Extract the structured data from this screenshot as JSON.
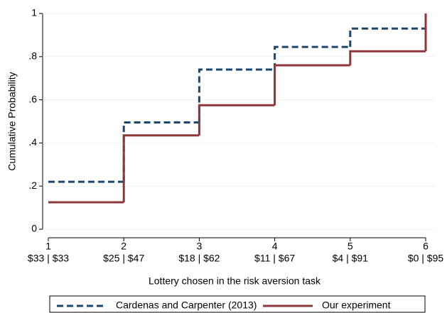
{
  "chart_data": {
    "type": "step",
    "xlabel": "Lottery chosen in the risk aversion task",
    "ylabel": "Cumulative Probability",
    "x": [
      1,
      2,
      3,
      4,
      5,
      6
    ],
    "xlim": [
      1,
      6
    ],
    "xticks": [
      1,
      2,
      3,
      4,
      5,
      6
    ],
    "xtick_sublabels": [
      "$33 | $33",
      "$25 | $47",
      "$18 | $62",
      "$11 | $67",
      "$4 | $91",
      "$0 | $95"
    ],
    "ylim": [
      0,
      1
    ],
    "yticks": [
      0,
      {
        "value": 0.2,
        "label": ".2"
      },
      {
        "value": 0.4,
        "label": ".4"
      },
      {
        "value": 0.6,
        "label": ".6"
      },
      {
        "value": 0.8,
        "label": ".8"
      },
      1
    ],
    "grid": true,
    "legend": "bottom",
    "series": [
      {
        "name": "Cardenas and Carpenter (2013)",
        "color": "#1a476f",
        "dashed": true,
        "values": [
          0.22,
          0.495,
          0.74,
          0.845,
          0.93,
          1.0
        ]
      },
      {
        "name": "Our experiment",
        "color": "#90353b",
        "dashed": false,
        "values": [
          0.125,
          0.435,
          0.575,
          0.76,
          0.825,
          1.0
        ]
      }
    ]
  }
}
